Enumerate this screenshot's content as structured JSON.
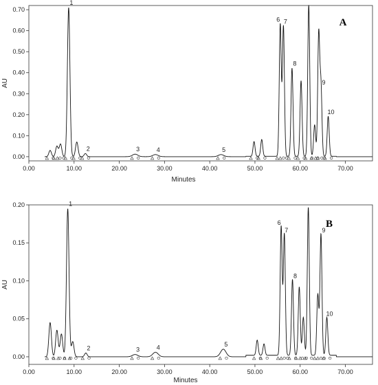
{
  "chart_data": [
    {
      "type": "line",
      "panel_label": "A",
      "xlabel": "Minutes",
      "ylabel": "AU",
      "xlim": [
        0,
        76
      ],
      "ylim": [
        -0.02,
        0.72
      ],
      "x_ticks": [
        "0.00",
        "10.00",
        "20.00",
        "30.00",
        "40.00",
        "50.00",
        "60.00",
        "70.00"
      ],
      "y_ticks": [
        "0.00",
        "0.10",
        "0.20",
        "0.30",
        "0.40",
        "0.50",
        "0.60",
        "0.70"
      ],
      "grid": false,
      "peaks": [
        {
          "label": "1",
          "x": 8.8,
          "y": 0.71
        },
        {
          "label": "2",
          "x": 12.5,
          "y": 0.015
        },
        {
          "label": "3",
          "x": 23.5,
          "y": 0.012
        },
        {
          "label": "4",
          "x": 28.0,
          "y": 0.01
        },
        {
          "label": "5",
          "x": 42.5,
          "y": 0.01
        },
        {
          "label": "6",
          "x": 55.6,
          "y": 0.63
        },
        {
          "label": "7",
          "x": 56.3,
          "y": 0.62
        },
        {
          "label": "8",
          "x": 58.2,
          "y": 0.42
        },
        {
          "label": "9",
          "x": 64.6,
          "y": 0.33
        },
        {
          "label": "10",
          "x": 66.2,
          "y": 0.19
        }
      ],
      "other_peaks": [
        {
          "x": 4.7,
          "y": 0.03
        },
        {
          "x": 6.2,
          "y": 0.05
        },
        {
          "x": 7.0,
          "y": 0.06
        },
        {
          "x": 10.6,
          "y": 0.07
        },
        {
          "x": 49.8,
          "y": 0.07
        },
        {
          "x": 51.5,
          "y": 0.08
        },
        {
          "x": 60.2,
          "y": 0.36
        },
        {
          "x": 61.9,
          "y": 0.72
        },
        {
          "x": 63.2,
          "y": 0.15
        },
        {
          "x": 64.1,
          "y": 0.58
        }
      ]
    },
    {
      "type": "line",
      "panel_label": "B",
      "xlabel": "Minutes",
      "ylabel": "AU",
      "xlim": [
        0,
        76
      ],
      "ylim": [
        -0.01,
        0.2
      ],
      "x_ticks": [
        "0.00",
        "10.00",
        "20.00",
        "30.00",
        "40.00",
        "50.00",
        "60.00",
        "70.00"
      ],
      "y_ticks": [
        "0.00",
        "0.05",
        "0.10",
        "0.15",
        "0.20"
      ],
      "grid": false,
      "peaks": [
        {
          "label": "1",
          "x": 8.6,
          "y": 0.195
        },
        {
          "label": "2",
          "x": 12.6,
          "y": 0.005
        },
        {
          "label": "3",
          "x": 23.5,
          "y": 0.003
        },
        {
          "label": "4",
          "x": 28.0,
          "y": 0.006
        },
        {
          "label": "5",
          "x": 43.0,
          "y": 0.01
        },
        {
          "label": "6",
          "x": 55.8,
          "y": 0.17
        },
        {
          "label": "7",
          "x": 56.5,
          "y": 0.16
        },
        {
          "label": "8",
          "x": 58.3,
          "y": 0.1
        },
        {
          "label": "9",
          "x": 64.6,
          "y": 0.16
        },
        {
          "label": "10",
          "x": 65.9,
          "y": 0.05
        }
      ],
      "other_peaks": [
        {
          "x": 4.7,
          "y": 0.045
        },
        {
          "x": 6.2,
          "y": 0.035
        },
        {
          "x": 7.2,
          "y": 0.03
        },
        {
          "x": 9.7,
          "y": 0.02
        },
        {
          "x": 50.5,
          "y": 0.02
        },
        {
          "x": 52.0,
          "y": 0.015
        },
        {
          "x": 59.8,
          "y": 0.09
        },
        {
          "x": 60.7,
          "y": 0.05
        },
        {
          "x": 61.8,
          "y": 0.195
        },
        {
          "x": 63.9,
          "y": 0.08
        }
      ]
    }
  ]
}
